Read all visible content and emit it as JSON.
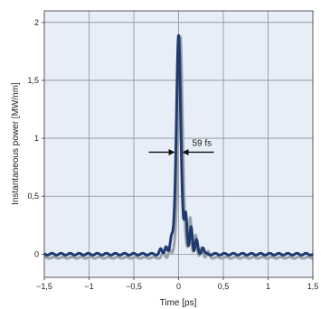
{
  "chart_data": {
    "type": "line",
    "title": "",
    "xlabel": "Time [ps]",
    "ylabel": "Instantaneous power [MW/nm]",
    "xlim": [
      -1.5,
      1.5
    ],
    "ylim": [
      -0.2,
      2.1
    ],
    "xticks": [
      -1.5,
      -1,
      -0.5,
      0,
      0.5,
      1,
      1.5
    ],
    "xtick_labels": [
      "−1,5",
      "−1",
      "−0,5",
      "0",
      "0,5",
      "1",
      "1,5"
    ],
    "yticks": [
      0,
      0.5,
      1,
      1.5,
      2
    ],
    "ytick_labels": [
      "0",
      "0,5",
      "1",
      "1,5",
      "2"
    ],
    "grid": true,
    "background": "#e8eef7",
    "series": [
      {
        "color": "#9aa1a8",
        "peak_time": 0.02,
        "peak_power": 1.9,
        "fwhm_ps": 0.059,
        "baseline": -0.03,
        "ripple_amplitude": 0.006,
        "sidelobes": [
          {
            "t": 0.13,
            "p": 0.33
          },
          {
            "t": 0.19,
            "p": 0.2
          },
          {
            "t": 0.26,
            "p": 0.09
          },
          {
            "t": 0.33,
            "p": 0.05
          },
          {
            "t": -0.1,
            "p": 0.06
          },
          {
            "t": -0.17,
            "p": 0.05
          }
        ]
      },
      {
        "color": "#1f3a6e",
        "peak_time": 0.0,
        "peak_power": 1.88,
        "fwhm_ps": 0.059,
        "baseline": 0.0,
        "ripple_amplitude": 0.008,
        "sidelobes": [
          {
            "t": 0.08,
            "p": 0.3
          },
          {
            "t": 0.14,
            "p": 0.24
          },
          {
            "t": 0.2,
            "p": 0.12
          },
          {
            "t": 0.27,
            "p": 0.06
          },
          {
            "t": -0.08,
            "p": 0.1
          },
          {
            "t": -0.14,
            "p": 0.07
          },
          {
            "t": -0.2,
            "p": 0.04
          }
        ]
      }
    ],
    "annotations": [
      {
        "text": "59 fs",
        "type": "fwhm-arrows",
        "x_left": -0.03,
        "x_right": 0.03,
        "y": 0.88
      }
    ]
  }
}
